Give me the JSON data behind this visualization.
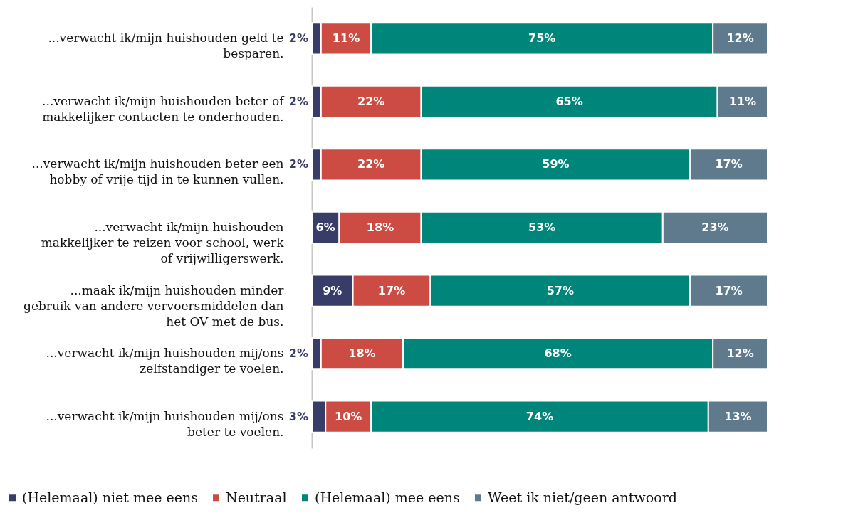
{
  "chart_data": {
    "type": "bar",
    "orientation": "horizontal",
    "stacked": true,
    "legend": "bottom",
    "xlim": [
      0,
      100
    ],
    "categories": [
      "...verwacht ik/mijn huishouden geld te besparen.",
      "...verwacht ik/mijn huishouden beter of makkelijker contacten te onderhouden.",
      "...verwacht ik/mijn huishouden beter een hobby of vrije tijd in te kunnen vullen.",
      "...verwacht ik/mijn huishouden makkelijker te reizen voor school, werk of vrijwilligerswerk.",
      "...maak ik/mijn huishouden minder gebruik van andere vervoersmiddelen dan het OV met de bus.",
      "...verwacht ik/mijn huishouden mij/ons zelfstandiger te voelen.",
      "...verwacht ik/mijn huishouden mij/ons beter te voelen."
    ],
    "series": [
      {
        "name": "(Helemaal) niet mee eens",
        "color": "#383c68",
        "values": [
          2,
          2,
          2,
          6,
          9,
          2,
          3
        ],
        "value_labels": [
          "2%",
          "2%",
          "2%",
          "6%",
          "9%",
          "2%",
          "3%"
        ]
      },
      {
        "name": "Neutraal",
        "color": "#cc4b43",
        "values": [
          11,
          22,
          22,
          18,
          17,
          18,
          10
        ],
        "value_labels": [
          "11%",
          "22%",
          "22%",
          "18%",
          "17%",
          "18%",
          "10%"
        ]
      },
      {
        "name": "(Helemaal) mee eens",
        "color": "#00857a",
        "values": [
          75,
          65,
          59,
          53,
          57,
          68,
          74
        ],
        "value_labels": [
          "75%",
          "65%",
          "59%",
          "53%",
          "57%",
          "68%",
          "74%"
        ]
      },
      {
        "name": "Weet ik niet/geen antwoord",
        "color": "#5f798d",
        "values": [
          12,
          11,
          17,
          23,
          17,
          12,
          13
        ],
        "value_labels": [
          "12%",
          "11%",
          "17%",
          "23%",
          "17%",
          "12%",
          "13%"
        ]
      }
    ]
  }
}
